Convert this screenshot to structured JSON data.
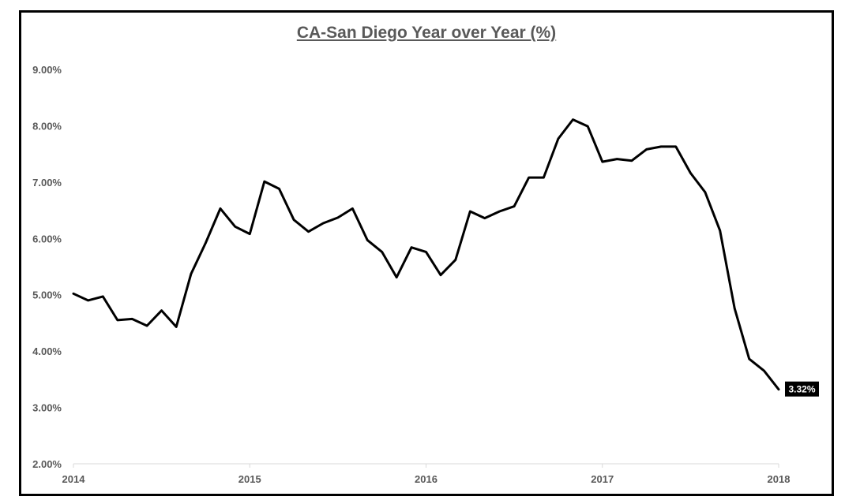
{
  "chart_data": {
    "type": "line",
    "title": "CA-San Diego Year over Year (%)",
    "xlabel": "",
    "ylabel": "",
    "x_ticks": [
      "2014",
      "2015",
      "2016",
      "2017",
      "2018"
    ],
    "y_ticks": [
      "2.00%",
      "3.00%",
      "4.00%",
      "5.00%",
      "6.00%",
      "7.00%",
      "8.00%",
      "9.00%"
    ],
    "ylim": [
      2.0,
      9.0
    ],
    "xlim": [
      2014.0,
      2018.0
    ],
    "grid": false,
    "legend": "none",
    "line_color": "#000000",
    "series": [
      {
        "x": [
          2014.0,
          2014.083,
          2014.167,
          2014.25,
          2014.333,
          2014.417,
          2014.5,
          2014.583,
          2014.667,
          2014.75,
          2014.833,
          2014.917,
          2015.0,
          2015.083,
          2015.167,
          2015.25,
          2015.333,
          2015.417,
          2015.5,
          2015.583,
          2015.667,
          2015.75,
          2015.833,
          2015.917,
          2016.0,
          2016.083,
          2016.167,
          2016.25,
          2016.333,
          2016.417,
          2016.5,
          2016.583,
          2016.667,
          2016.75,
          2016.833,
          2016.917,
          2017.0,
          2017.083,
          2017.167,
          2017.25,
          2017.333,
          2017.417,
          2017.5,
          2017.583,
          2017.667,
          2017.75,
          2017.833,
          2017.917,
          2018.0
        ],
        "values": [
          5.02,
          4.9,
          4.97,
          4.55,
          4.57,
          4.45,
          4.72,
          4.43,
          5.37,
          5.92,
          6.53,
          6.21,
          6.08,
          7.01,
          6.88,
          6.33,
          6.12,
          6.27,
          6.37,
          6.53,
          5.97,
          5.76,
          5.31,
          5.84,
          5.76,
          5.35,
          5.62,
          6.48,
          6.36,
          6.48,
          6.57,
          7.08,
          7.08,
          7.77,
          8.11,
          7.99,
          7.36,
          7.41,
          7.38,
          7.58,
          7.63,
          7.63,
          7.16,
          6.82,
          6.14,
          4.76,
          3.86,
          3.65,
          3.32
        ]
      }
    ],
    "data_label": "3.32%"
  }
}
